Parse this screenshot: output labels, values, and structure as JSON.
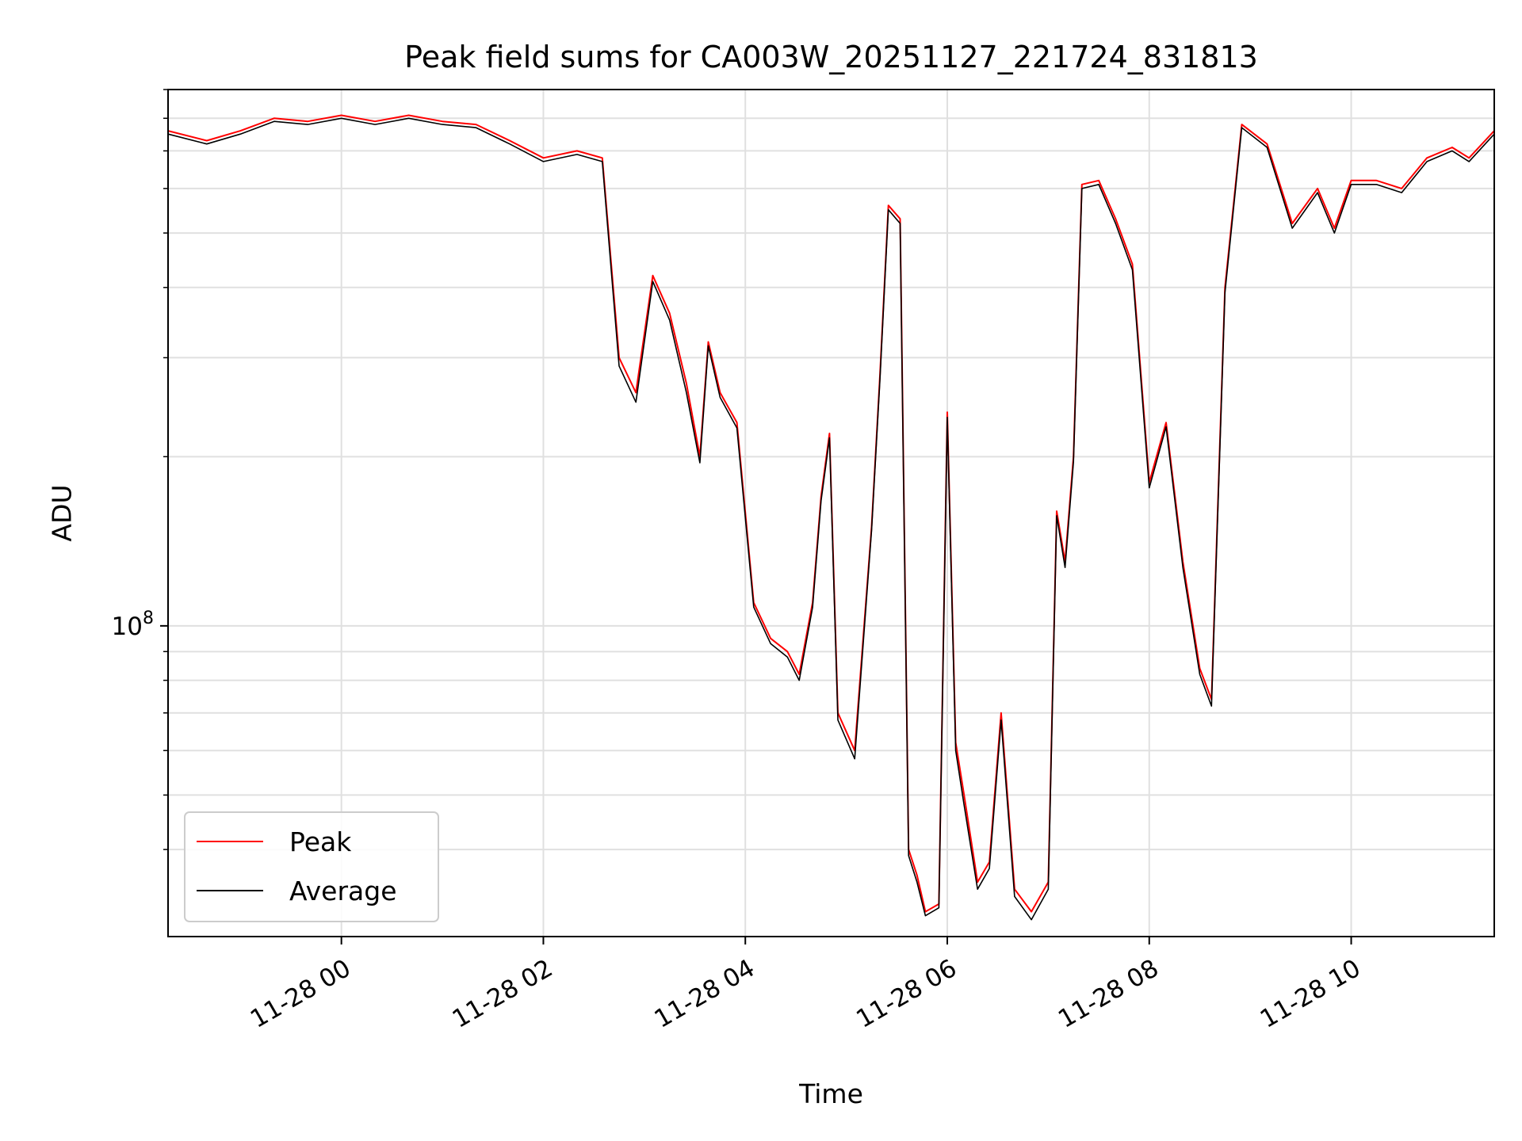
{
  "chart_data": {
    "type": "line",
    "title": "Peak field sums for CA003W_20251127_221724_831813",
    "xlabel": "Time",
    "ylabel": "ADU",
    "yscale": "log",
    "ylim": [
      28000000,
      900000000
    ],
    "xlim": [
      "2025-11-27 22:17",
      "2025-11-28 11:25"
    ],
    "grid": true,
    "legend_position": "lower-left",
    "x_ticks": [
      {
        "label": "11-28 00",
        "x": "2025-11-28 00:00"
      },
      {
        "label": "11-28 02",
        "x": "2025-11-28 02:00"
      },
      {
        "label": "11-28 04",
        "x": "2025-11-28 04:00"
      },
      {
        "label": "11-28 06",
        "x": "2025-11-28 06:00"
      },
      {
        "label": "11-28 08",
        "x": "2025-11-28 08:00"
      },
      {
        "label": "11-28 10",
        "x": "2025-11-28 10:00"
      }
    ],
    "y_tick_major": {
      "value": 100000000,
      "base": "10",
      "exp": "8"
    },
    "y_minor_ticks": [
      40000000,
      50000000,
      60000000,
      70000000,
      80000000,
      90000000,
      200000000,
      300000000,
      400000000,
      500000000,
      600000000,
      700000000,
      800000000,
      900000000
    ],
    "x": [
      "2025-11-27 22:17",
      "2025-11-27 22:40",
      "2025-11-27 23:00",
      "2025-11-27 23:20",
      "2025-11-27 23:40",
      "2025-11-28 00:00",
      "2025-11-28 00:20",
      "2025-11-28 00:40",
      "2025-11-28 01:00",
      "2025-11-28 01:20",
      "2025-11-28 01:40",
      "2025-11-28 02:00",
      "2025-11-28 02:20",
      "2025-11-28 02:35",
      "2025-11-28 02:45",
      "2025-11-28 02:55",
      "2025-11-28 03:05",
      "2025-11-28 03:15",
      "2025-11-28 03:25",
      "2025-11-28 03:33",
      "2025-11-28 03:38",
      "2025-11-28 03:45",
      "2025-11-28 03:55",
      "2025-11-28 04:05",
      "2025-11-28 04:15",
      "2025-11-28 04:25",
      "2025-11-28 04:32",
      "2025-11-28 04:40",
      "2025-11-28 04:45",
      "2025-11-28 04:50",
      "2025-11-28 04:55",
      "2025-11-28 05:05",
      "2025-11-28 05:15",
      "2025-11-28 05:20",
      "2025-11-28 05:25",
      "2025-11-28 05:32",
      "2025-11-28 05:37",
      "2025-11-28 05:42",
      "2025-11-28 05:47",
      "2025-11-28 05:55",
      "2025-11-28 06:00",
      "2025-11-28 06:05",
      "2025-11-28 06:10",
      "2025-11-28 06:18",
      "2025-11-28 06:25",
      "2025-11-28 06:32",
      "2025-11-28 06:40",
      "2025-11-28 06:50",
      "2025-11-28 07:00",
      "2025-11-28 07:05",
      "2025-11-28 07:10",
      "2025-11-28 07:15",
      "2025-11-28 07:20",
      "2025-11-28 07:30",
      "2025-11-28 07:40",
      "2025-11-28 07:50",
      "2025-11-28 08:00",
      "2025-11-28 08:10",
      "2025-11-28 08:20",
      "2025-11-28 08:30",
      "2025-11-28 08:37",
      "2025-11-28 08:45",
      "2025-11-28 08:55",
      "2025-11-28 09:10",
      "2025-11-28 09:25",
      "2025-11-28 09:40",
      "2025-11-28 09:50",
      "2025-11-28 10:00",
      "2025-11-28 10:15",
      "2025-11-28 10:30",
      "2025-11-28 10:45",
      "2025-11-28 11:00",
      "2025-11-28 11:10",
      "2025-11-28 11:25"
    ],
    "series": [
      {
        "name": "Peak",
        "color": "#ff0000",
        "values": [
          760000000,
          730000000,
          760000000,
          800000000,
          790000000,
          810000000,
          790000000,
          810000000,
          790000000,
          780000000,
          730000000,
          680000000,
          700000000,
          680000000,
          300000000,
          260000000,
          420000000,
          360000000,
          270000000,
          200000000,
          320000000,
          260000000,
          230000000,
          110000000,
          95000000,
          90000000,
          82000000,
          110000000,
          170000000,
          220000000,
          70000000,
          60000000,
          150000000,
          280000000,
          560000000,
          530000000,
          40000000,
          36000000,
          31000000,
          32000000,
          240000000,
          62000000,
          50000000,
          35000000,
          38000000,
          70000000,
          34000000,
          31000000,
          35000000,
          160000000,
          130000000,
          200000000,
          610000000,
          620000000,
          530000000,
          440000000,
          180000000,
          230000000,
          130000000,
          84000000,
          74000000,
          400000000,
          780000000,
          720000000,
          520000000,
          600000000,
          510000000,
          620000000,
          620000000,
          600000000,
          680000000,
          710000000,
          680000000,
          760000000
        ]
      },
      {
        "name": "Average",
        "color": "#000000",
        "values": [
          750000000,
          720000000,
          750000000,
          790000000,
          780000000,
          800000000,
          780000000,
          800000000,
          780000000,
          770000000,
          720000000,
          670000000,
          690000000,
          670000000,
          290000000,
          250000000,
          410000000,
          350000000,
          260000000,
          195000000,
          315000000,
          255000000,
          225000000,
          108000000,
          93000000,
          88000000,
          80000000,
          108000000,
          167000000,
          216000000,
          68000000,
          58000000,
          148000000,
          275000000,
          550000000,
          520000000,
          39000000,
          35000000,
          30500000,
          31500000,
          235000000,
          60000000,
          48000000,
          34000000,
          37000000,
          68000000,
          33000000,
          30000000,
          34000000,
          157000000,
          127000000,
          196000000,
          600000000,
          610000000,
          520000000,
          430000000,
          176000000,
          226000000,
          127000000,
          82000000,
          72000000,
          392000000,
          770000000,
          710000000,
          510000000,
          590000000,
          500000000,
          610000000,
          610000000,
          590000000,
          670000000,
          700000000,
          670000000,
          750000000
        ]
      }
    ]
  }
}
